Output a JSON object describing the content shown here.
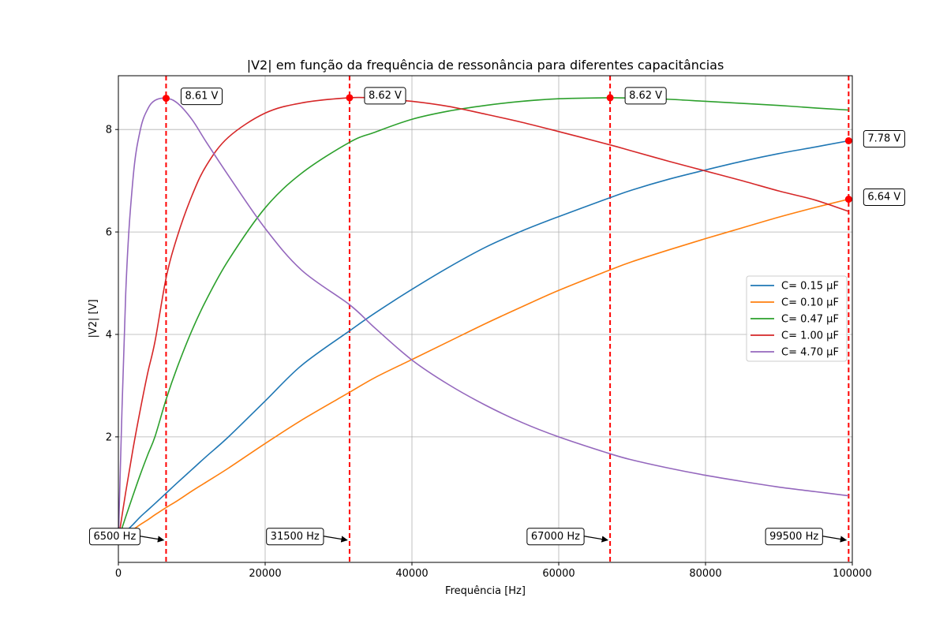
{
  "chart_data": {
    "type": "line",
    "title": "|V2| em função da frequência de ressonância para diferentes capacitâncias",
    "xlabel": "Frequência [Hz]",
    "ylabel": "|V2| [V]",
    "xlim": [
      0,
      100000
    ],
    "ylim": [
      -0.45,
      9.05
    ],
    "grid": true,
    "legend_position": "center-right",
    "x_ticks": [
      0,
      20000,
      40000,
      60000,
      80000,
      100000
    ],
    "x_tick_labels": [
      "0",
      "20000",
      "40000",
      "60000",
      "80000",
      "100000"
    ],
    "y_ticks": [
      2,
      4,
      6,
      8
    ],
    "y_tick_labels": [
      "2",
      "4",
      "6",
      "8"
    ],
    "x": [
      0,
      1000,
      2000,
      3000,
      4000,
      5000,
      6500,
      8000,
      10000,
      12000,
      15000,
      20000,
      25000,
      31500,
      35000,
      40000,
      45000,
      50000,
      55000,
      60000,
      67000,
      70000,
      75000,
      80000,
      85000,
      90000,
      95000,
      99500
    ],
    "series": [
      {
        "name": "C= 0.15 µF",
        "color": "#1f77b4",
        "values": [
          0.0,
          0.15,
          0.29,
          0.44,
          0.57,
          0.7,
          0.9,
          1.1,
          1.36,
          1.62,
          2.0,
          2.7,
          3.4,
          4.07,
          4.42,
          4.88,
          5.31,
          5.7,
          6.02,
          6.3,
          6.67,
          6.82,
          7.03,
          7.21,
          7.38,
          7.53,
          7.66,
          7.78
        ]
      },
      {
        "name": "C= 0.10 µF",
        "color": "#ff7f0e",
        "values": [
          0.0,
          0.1,
          0.19,
          0.29,
          0.38,
          0.48,
          0.62,
          0.75,
          0.94,
          1.12,
          1.39,
          1.87,
          2.33,
          2.87,
          3.16,
          3.51,
          3.86,
          4.21,
          4.54,
          4.86,
          5.26,
          5.42,
          5.65,
          5.87,
          6.08,
          6.29,
          6.48,
          6.64
        ]
      },
      {
        "name": "C= 0.47 µF",
        "color": "#2ca02c",
        "values": [
          0.0,
          0.44,
          0.86,
          1.27,
          1.65,
          2.01,
          2.73,
          3.35,
          4.07,
          4.68,
          5.45,
          6.47,
          7.15,
          7.75,
          7.95,
          8.2,
          8.36,
          8.47,
          8.55,
          8.6,
          8.62,
          8.61,
          8.59,
          8.55,
          8.51,
          8.47,
          8.42,
          8.38
        ]
      },
      {
        "name": "C= 1.00 µF",
        "color": "#d62728",
        "values": [
          0.0,
          0.92,
          1.77,
          2.54,
          3.25,
          3.87,
          5.1,
          5.9,
          6.7,
          7.3,
          7.85,
          8.32,
          8.52,
          8.62,
          8.61,
          8.55,
          8.45,
          8.3,
          8.14,
          7.96,
          7.7,
          7.58,
          7.38,
          7.19,
          7.0,
          6.8,
          6.62,
          6.4
        ]
      },
      {
        "name": "C= 4.70 µF",
        "color": "#9467bd",
        "values": [
          0.0,
          4.8,
          7.05,
          8.0,
          8.4,
          8.57,
          8.61,
          8.52,
          8.2,
          7.75,
          7.1,
          6.07,
          5.25,
          4.58,
          4.12,
          3.5,
          3.02,
          2.62,
          2.28,
          2.0,
          1.67,
          1.55,
          1.39,
          1.25,
          1.13,
          1.02,
          0.93,
          0.85
        ]
      }
    ],
    "resonance_lines": [
      6500,
      31500,
      67000,
      99500
    ],
    "peak_markers": [
      {
        "x": 6500,
        "y": 8.61,
        "label": "8.61 V"
      },
      {
        "x": 31500,
        "y": 8.62,
        "label": "8.62 V"
      },
      {
        "x": 67000,
        "y": 8.62,
        "label": "8.62 V"
      },
      {
        "x": 99500,
        "y": 7.78,
        "label": "7.78 V"
      },
      {
        "x": 99500,
        "y": 6.64,
        "label": "6.64 V"
      }
    ],
    "frequency_annotations": [
      {
        "x": 6500,
        "label": "6500 Hz"
      },
      {
        "x": 31500,
        "label": "31500 Hz"
      },
      {
        "x": 67000,
        "label": "67000 Hz"
      },
      {
        "x": 99500,
        "label": "99500 Hz"
      }
    ],
    "marker_color": "#ff0000"
  }
}
